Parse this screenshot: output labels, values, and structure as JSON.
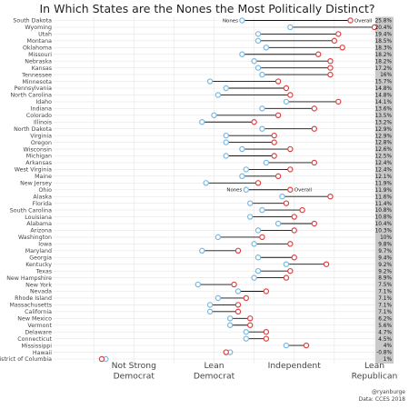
{
  "chart_data": {
    "type": "dumbbell",
    "title": "In Which States are the Nones the Most Politically Distinct?",
    "xlabel": "",
    "ylabel": "",
    "xlim": [
      1,
      5
    ],
    "x_ticks": [
      {
        "value": 2,
        "label": [
          "Not Strong",
          "Democrat"
        ]
      },
      {
        "value": 3,
        "label": [
          "Lean",
          "Democrat"
        ]
      },
      {
        "value": 4,
        "label": [
          "Independent"
        ]
      },
      {
        "value": 5,
        "label": [
          "Lean",
          "Republican"
        ]
      }
    ],
    "series": [
      {
        "name": "Nones",
        "color": "#7ab8e0"
      },
      {
        "name": "Overall",
        "color": "#e04040"
      }
    ],
    "annotations": [
      {
        "row": "South Dakota",
        "nones_label": "Nones",
        "overall_label": "Overall"
      },
      {
        "row": "Ohio",
        "nones_label": "Nones",
        "overall_label": "Overall"
      }
    ],
    "states": [
      {
        "state": "South Dakota",
        "nones": 3.35,
        "overall": 4.7,
        "gap": "25.8%"
      },
      {
        "state": "Wyoming",
        "nones": 3.95,
        "overall": 5.0,
        "gap": "20.4%"
      },
      {
        "state": "Utah",
        "nones": 3.55,
        "overall": 4.55,
        "gap": "19.4%"
      },
      {
        "state": "Montana",
        "nones": 3.55,
        "overall": 4.5,
        "gap": "18.5%"
      },
      {
        "state": "Oklahoma",
        "nones": 3.65,
        "overall": 4.6,
        "gap": "18.3%"
      },
      {
        "state": "Missouri",
        "nones": 3.35,
        "overall": 4.3,
        "gap": "18.2%"
      },
      {
        "state": "Nebraska",
        "nones": 3.5,
        "overall": 4.45,
        "gap": "18.2%"
      },
      {
        "state": "Kansas",
        "nones": 3.55,
        "overall": 4.45,
        "gap": "17.2%"
      },
      {
        "state": "Tennessee",
        "nones": 3.6,
        "overall": 4.45,
        "gap": "16%"
      },
      {
        "state": "Minnesota",
        "nones": 2.95,
        "overall": 3.8,
        "gap": "15.7%"
      },
      {
        "state": "Pennsylvania",
        "nones": 3.15,
        "overall": 3.9,
        "gap": "14.8%"
      },
      {
        "state": "North Carolina",
        "nones": 3.05,
        "overall": 3.95,
        "gap": "14.8%"
      },
      {
        "state": "Idaho",
        "nones": 3.9,
        "overall": 4.55,
        "gap": "14.1%"
      },
      {
        "state": "Indiana",
        "nones": 3.6,
        "overall": 4.25,
        "gap": "13.6%"
      },
      {
        "state": "Colorado",
        "nones": 3.0,
        "overall": 3.8,
        "gap": "13.5%"
      },
      {
        "state": "Illinois",
        "nones": 2.85,
        "overall": 3.5,
        "gap": "13.2%"
      },
      {
        "state": "North Dakota",
        "nones": 3.6,
        "overall": 4.25,
        "gap": "12.9%"
      },
      {
        "state": "Virginia",
        "nones": 3.15,
        "overall": 3.75,
        "gap": "12.9%"
      },
      {
        "state": "Oregon",
        "nones": 3.15,
        "overall": 3.75,
        "gap": "12.8%"
      },
      {
        "state": "Wisconsin",
        "nones": 3.35,
        "overall": 3.95,
        "gap": "12.6%"
      },
      {
        "state": "Michigan",
        "nones": 3.15,
        "overall": 3.75,
        "gap": "12.5%"
      },
      {
        "state": "Arkansas",
        "nones": 3.65,
        "overall": 4.25,
        "gap": "12.4%"
      },
      {
        "state": "West Virginia",
        "nones": 3.4,
        "overall": 3.95,
        "gap": "12.4%"
      },
      {
        "state": "Maine",
        "nones": 3.35,
        "overall": 3.8,
        "gap": "12.1%"
      },
      {
        "state": "New Jersey",
        "nones": 2.9,
        "overall": 3.55,
        "gap": "11.9%"
      },
      {
        "state": "Ohio",
        "nones": 3.4,
        "overall": 3.95,
        "gap": "11.9%"
      },
      {
        "state": "Alaska",
        "nones": 3.85,
        "overall": 4.45,
        "gap": "11.6%"
      },
      {
        "state": "Florida",
        "nones": 3.45,
        "overall": 3.9,
        "gap": "11.4%"
      },
      {
        "state": "South Carolina",
        "nones": 3.6,
        "overall": 4.1,
        "gap": "10.8%"
      },
      {
        "state": "Louisiana",
        "nones": 3.45,
        "overall": 4.0,
        "gap": "10.8%"
      },
      {
        "state": "Alabama",
        "nones": 3.8,
        "overall": 4.25,
        "gap": "10.4%"
      },
      {
        "state": "Arizona",
        "nones": 3.55,
        "overall": 4.0,
        "gap": "10.3%"
      },
      {
        "state": "Washington",
        "nones": 3.05,
        "overall": 3.6,
        "gap": "10%"
      },
      {
        "state": "Iowa",
        "nones": 3.5,
        "overall": 3.95,
        "gap": "9.8%"
      },
      {
        "state": "Maryland",
        "nones": 2.85,
        "overall": 3.3,
        "gap": "9.7%"
      },
      {
        "state": "Georgia",
        "nones": 3.55,
        "overall": 4.0,
        "gap": "9.4%"
      },
      {
        "state": "Kentucky",
        "nones": 3.9,
        "overall": 4.4,
        "gap": "9.2%"
      },
      {
        "state": "Texas",
        "nones": 3.55,
        "overall": 3.95,
        "gap": "9.2%"
      },
      {
        "state": "New Hampshire",
        "nones": 3.5,
        "overall": 3.9,
        "gap": "8.9%"
      },
      {
        "state": "New York",
        "nones": 2.8,
        "overall": 3.25,
        "gap": "7.5%"
      },
      {
        "state": "Nevada",
        "nones": 3.3,
        "overall": 3.65,
        "gap": "7.1%"
      },
      {
        "state": "Rhode Island",
        "nones": 3.05,
        "overall": 3.4,
        "gap": "7.1%"
      },
      {
        "state": "Massachusetts",
        "nones": 2.95,
        "overall": 3.3,
        "gap": "7.1%"
      },
      {
        "state": "California",
        "nones": 2.95,
        "overall": 3.3,
        "gap": "7.1%"
      },
      {
        "state": "New Mexico",
        "nones": 3.2,
        "overall": 3.45,
        "gap": "6.2%"
      },
      {
        "state": "Vermont",
        "nones": 3.2,
        "overall": 3.45,
        "gap": "5.6%"
      },
      {
        "state": "Delaware",
        "nones": 3.4,
        "overall": 3.65,
        "gap": "4.7%"
      },
      {
        "state": "Connecticut",
        "nones": 3.4,
        "overall": 3.65,
        "gap": "4.5%"
      },
      {
        "state": "Mississippi",
        "nones": 3.9,
        "overall": 4.15,
        "gap": "4%"
      },
      {
        "state": "Hawaii",
        "nones": 3.2,
        "overall": 3.15,
        "gap": "-0.8%"
      },
      {
        "state": "District of Columbia",
        "nones": 1.65,
        "overall": 1.6,
        "gap": "1%"
      }
    ],
    "grid": true,
    "legend": "inline-annotations"
  },
  "credit": {
    "handle": "@ryanburge",
    "source": "Data: CCES 2018"
  }
}
